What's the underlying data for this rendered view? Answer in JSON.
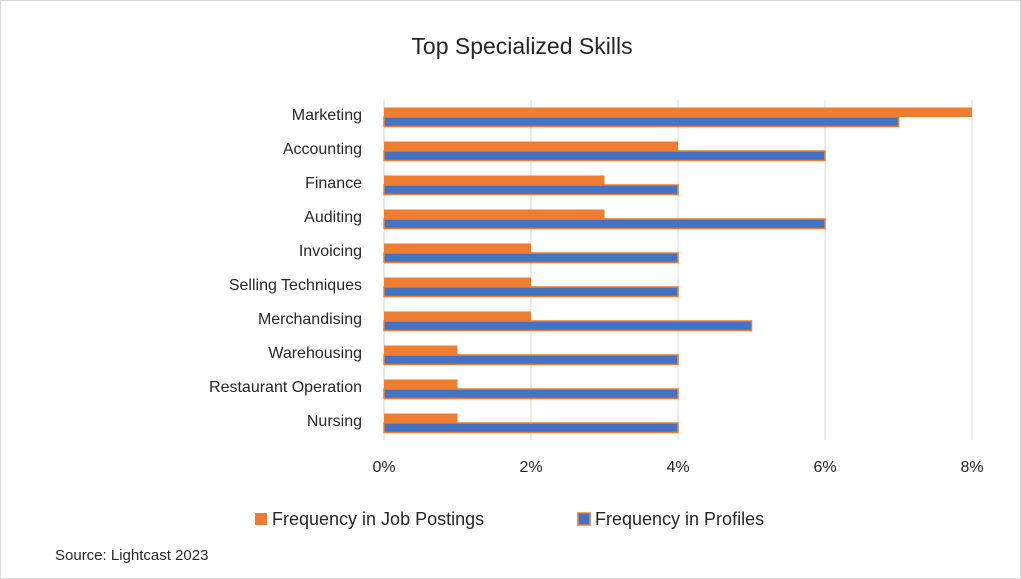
{
  "chart_data": {
    "type": "hbar",
    "title": "Top Specialized Skills",
    "categories": [
      "Marketing",
      "Accounting",
      "Finance",
      "Auditing",
      "Invoicing",
      "Selling Techniques",
      "Merchandising",
      "Warehousing",
      "Restaurant Operation",
      "Nursing"
    ],
    "series": [
      {
        "name": "Frequency in Job Postings",
        "color": "#ed7d31",
        "values": [
          8,
          4,
          3,
          3,
          2,
          2,
          2,
          1,
          1,
          1
        ]
      },
      {
        "name": "Frequency in Profiles",
        "color": "#4472c4",
        "values": [
          7,
          6,
          4,
          6,
          4,
          4,
          5,
          4,
          4,
          4
        ]
      }
    ],
    "xlim": [
      0,
      8
    ],
    "xticks": [
      {
        "value": 0,
        "label": "0%"
      },
      {
        "value": 2,
        "label": "2%"
      },
      {
        "value": 4,
        "label": "4%"
      },
      {
        "value": 6,
        "label": "6%"
      },
      {
        "value": 8,
        "label": "8%"
      }
    ],
    "grid": true,
    "legend": "bottom",
    "source": "Source: Lightcast 2023"
  }
}
